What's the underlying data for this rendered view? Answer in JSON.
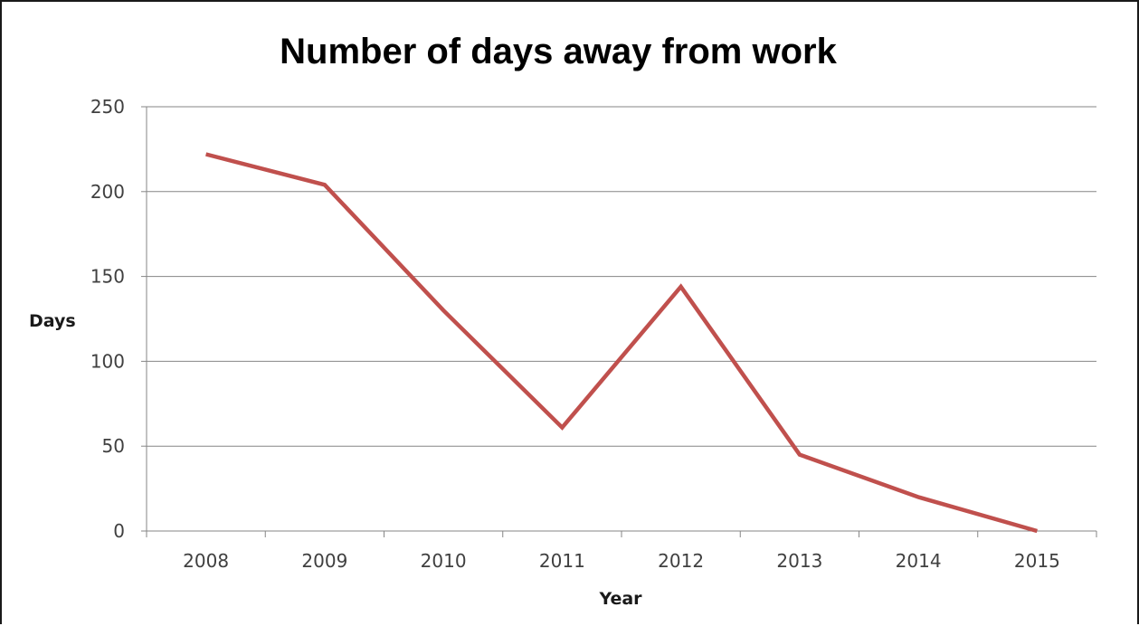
{
  "chart_data": {
    "type": "line",
    "title": "Number of days away from work",
    "xlabel": "Year",
    "ylabel": "Days",
    "categories": [
      "2008",
      "2009",
      "2010",
      "2011",
      "2012",
      "2013",
      "2014",
      "2015"
    ],
    "series": [
      {
        "values": [
          222,
          204,
          130,
          61,
          144,
          45,
          20,
          0
        ],
        "color": "#c0504d"
      }
    ],
    "ylim": [
      0,
      250
    ],
    "yticks": [
      "0",
      "50",
      "100",
      "150",
      "200",
      "250"
    ],
    "grid": true,
    "legend": "none"
  }
}
